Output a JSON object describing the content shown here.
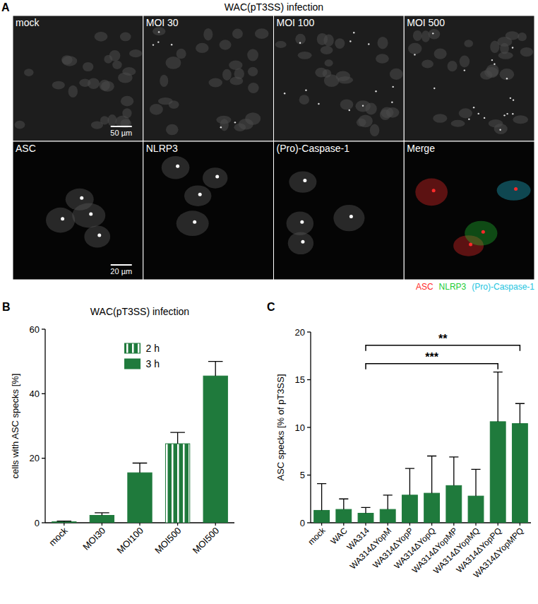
{
  "panel_a": {
    "panel": "A",
    "title": "WAC(pT3SS) infection",
    "rows": [
      {
        "tiles": [
          "mock",
          "MOI 30",
          "MOI 100",
          "MOI 500"
        ],
        "scale_bar": "50 µm"
      },
      {
        "tiles": [
          "ASC",
          "NLRP3",
          "(Pro)-Caspase-1",
          "Merge"
        ],
        "scale_bar": "20 µm"
      }
    ],
    "channels": [
      {
        "name": "ASC",
        "color": "#ff2a2a"
      },
      {
        "name": "NLRP3",
        "color": "#22cc33"
      },
      {
        "name": "(Pro)-Caspase-1",
        "color": "#22c4e0"
      }
    ]
  },
  "chart_data": [
    {
      "panel": "B",
      "type": "bar",
      "title": "WAC(pT3SS) infection",
      "y_label": "cells with ASC specks [%]",
      "categories": [
        "mock",
        "MOI30",
        "MOI100",
        "MOI500",
        "MOI500"
      ],
      "series": [
        {
          "name": "2 h",
          "color": "#1f7a3c",
          "values": [
            null,
            null,
            null,
            24.5,
            null
          ],
          "errors": [
            null,
            null,
            null,
            3.5,
            null
          ]
        },
        {
          "name": "3 h",
          "color": "#1f7a3c",
          "values": [
            0.3,
            2.3,
            15.5,
            null,
            45.5
          ],
          "errors": [
            0.2,
            0.8,
            3,
            null,
            4.5
          ]
        }
      ],
      "ylim": [
        0,
        60
      ],
      "yticks": [
        0,
        20,
        40,
        60
      ],
      "legend": "top"
    },
    {
      "panel": "C",
      "type": "bar",
      "y_label": "ASC specks [% of pT3SS]",
      "categories": [
        "mock",
        "WAC",
        "WA314",
        "WA314ΔYopM",
        "WA314ΔYopP",
        "WA314ΔYopQ",
        "WA314ΔYopMP",
        "WA314ΔYopMQ",
        "WA314ΔYopPQ",
        "WA314ΔYopMPQ"
      ],
      "values": [
        1.3,
        1.4,
        1.0,
        1.4,
        2.9,
        3.1,
        3.9,
        2.8,
        10.6,
        10.4
      ],
      "errors": [
        2.8,
        1.1,
        0.6,
        1.5,
        2.8,
        3.9,
        3.0,
        2.8,
        5.2,
        2.1
      ],
      "color": "#1f7a3c",
      "ylim": [
        0,
        20
      ],
      "yticks": [
        0,
        5,
        10,
        15,
        20
      ],
      "annotations": [
        {
          "label": "***",
          "from": 2,
          "to": 8
        },
        {
          "label": "**",
          "from": 2,
          "to": 9
        }
      ]
    }
  ]
}
